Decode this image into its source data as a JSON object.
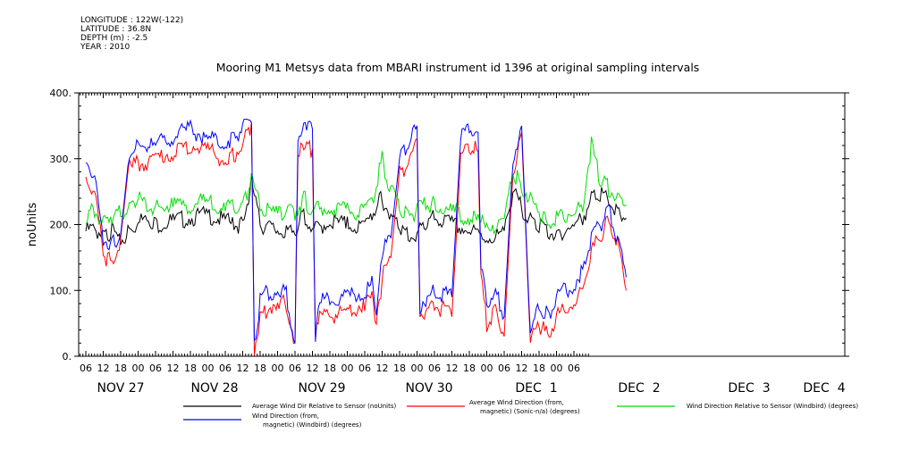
{
  "meta": {
    "longitude": "LONGITUDE : 122W(-122)",
    "latitude": "LATITUDE : 36.8N",
    "depth": "DEPTH (m) : -2.5",
    "year": "YEAR : 2010"
  },
  "chart_data": {
    "type": "line",
    "title": "Mooring M1 Metsys data from MBARI instrument id 1396 at original sampling intervals",
    "ylabel": "noUnits",
    "ylim": [
      0,
      400
    ],
    "yticks": [
      0,
      100,
      200,
      300,
      400
    ],
    "ytick_labels": [
      "0.",
      "100.",
      "200.",
      "300.",
      "400."
    ],
    "x_hour_ticks": [
      "06",
      "12",
      "18",
      "00",
      "06",
      "12",
      "18",
      "00",
      "06",
      "12",
      "18",
      "00",
      "06",
      "12",
      "18",
      "00",
      "06",
      "12",
      "18",
      "00",
      "06",
      "12",
      "18",
      "00",
      "06",
      "12",
      "18",
      "00",
      "06"
    ],
    "x_day_labels": [
      "NOV 27",
      "NOV 28",
      "NOV 29",
      "NOV 30",
      "DEC  1",
      "DEC  2",
      "DEC  3",
      "DEC  4"
    ],
    "x_range_hours": [
      0,
      171
    ],
    "series": [
      {
        "name": "Average Wind Dir Relative to Sensor (noUnits)",
        "color": "#000000",
        "points": [
          [
            0,
            190
          ],
          [
            3,
            195
          ],
          [
            6,
            180
          ],
          [
            9,
            190
          ],
          [
            12,
            175
          ],
          [
            15,
            190
          ],
          [
            18,
            200
          ],
          [
            21,
            215
          ],
          [
            24,
            200
          ],
          [
            30,
            205
          ],
          [
            36,
            210
          ],
          [
            42,
            215
          ],
          [
            48,
            205
          ],
          [
            51,
            200
          ],
          [
            54,
            200
          ],
          [
            57,
            265
          ],
          [
            60,
            200
          ],
          [
            66,
            190
          ],
          [
            69,
            185
          ],
          [
            72,
            190
          ],
          [
            75,
            215
          ],
          [
            78,
            190
          ],
          [
            84,
            205
          ],
          [
            90,
            200
          ],
          [
            96,
            195
          ],
          [
            99,
            220
          ],
          [
            102,
            240
          ],
          [
            105,
            210
          ],
          [
            108,
            200
          ],
          [
            111,
            180
          ],
          [
            114,
            185
          ],
          [
            117,
            200
          ],
          [
            120,
            210
          ],
          [
            126,
            200
          ],
          [
            132,
            190
          ],
          [
            138,
            180
          ],
          [
            144,
            185
          ],
          [
            147,
            250
          ],
          [
            150,
            225
          ],
          [
            153,
            210
          ],
          [
            156,
            200
          ],
          [
            159,
            190
          ],
          [
            162,
            185
          ],
          [
            168,
            200
          ],
          [
            171,
            210
          ],
          [
            174,
            240
          ],
          [
            177,
            245
          ],
          [
            180,
            235
          ],
          [
            183,
            215
          ],
          [
            186,
            210
          ]
        ]
      },
      {
        "name": "Average Wind Direction (from, magnetic) (Sonic-n/a) (degrees)",
        "color": "#ff0000",
        "points": [
          [
            0,
            270
          ],
          [
            3,
            250
          ],
          [
            6,
            155
          ],
          [
            9,
            140
          ],
          [
            12,
            180
          ],
          [
            15,
            300
          ],
          [
            18,
            290
          ],
          [
            24,
            300
          ],
          [
            30,
            310
          ],
          [
            36,
            320
          ],
          [
            42,
            315
          ],
          [
            48,
            295
          ],
          [
            51,
            305
          ],
          [
            54,
            320
          ],
          [
            57,
            355
          ],
          [
            58,
            10
          ],
          [
            60,
            60
          ],
          [
            66,
            85
          ],
          [
            69,
            80
          ],
          [
            72,
            20
          ],
          [
            73,
            310
          ],
          [
            78,
            315
          ],
          [
            79,
            20
          ],
          [
            80,
            60
          ],
          [
            84,
            60
          ],
          [
            90,
            70
          ],
          [
            96,
            80
          ],
          [
            99,
            90
          ],
          [
            100,
            40
          ],
          [
            102,
            120
          ],
          [
            105,
            150
          ],
          [
            108,
            280
          ],
          [
            111,
            290
          ],
          [
            114,
            330
          ],
          [
            115,
            50
          ],
          [
            117,
            60
          ],
          [
            120,
            80
          ],
          [
            126,
            60
          ],
          [
            129,
            300
          ],
          [
            132,
            320
          ],
          [
            135,
            310
          ],
          [
            136,
            120
          ],
          [
            138,
            50
          ],
          [
            141,
            70
          ],
          [
            144,
            30
          ],
          [
            147,
            280
          ],
          [
            150,
            340
          ],
          [
            153,
            20
          ],
          [
            156,
            50
          ],
          [
            159,
            30
          ],
          [
            162,
            60
          ],
          [
            168,
            80
          ],
          [
            171,
            100
          ],
          [
            174,
            160
          ],
          [
            177,
            180
          ],
          [
            180,
            210
          ],
          [
            183,
            170
          ],
          [
            186,
            100
          ]
        ]
      },
      {
        "name": "Wind Direction Relative to Sensor (Windbird) (degrees)",
        "color": "#00dd00",
        "points": [
          [
            0,
            215
          ],
          [
            3,
            220
          ],
          [
            6,
            205
          ],
          [
            9,
            215
          ],
          [
            12,
            220
          ],
          [
            15,
            225
          ],
          [
            18,
            240
          ],
          [
            21,
            225
          ],
          [
            24,
            225
          ],
          [
            30,
            230
          ],
          [
            36,
            230
          ],
          [
            42,
            235
          ],
          [
            48,
            225
          ],
          [
            51,
            230
          ],
          [
            54,
            230
          ],
          [
            57,
            270
          ],
          [
            60,
            225
          ],
          [
            66,
            215
          ],
          [
            69,
            215
          ],
          [
            72,
            220
          ],
          [
            75,
            240
          ],
          [
            78,
            220
          ],
          [
            84,
            225
          ],
          [
            90,
            220
          ],
          [
            96,
            220
          ],
          [
            99,
            240
          ],
          [
            102,
            300
          ],
          [
            105,
            250
          ],
          [
            108,
            225
          ],
          [
            111,
            215
          ],
          [
            114,
            220
          ],
          [
            117,
            230
          ],
          [
            120,
            230
          ],
          [
            126,
            220
          ],
          [
            132,
            210
          ],
          [
            138,
            200
          ],
          [
            144,
            200
          ],
          [
            147,
            280
          ],
          [
            150,
            260
          ],
          [
            153,
            240
          ],
          [
            156,
            220
          ],
          [
            159,
            200
          ],
          [
            162,
            210
          ],
          [
            168,
            220
          ],
          [
            171,
            230
          ],
          [
            174,
            320
          ],
          [
            177,
            270
          ],
          [
            180,
            255
          ],
          [
            183,
            240
          ],
          [
            186,
            230
          ]
        ]
      },
      {
        "name": "Wind Direction (from, magnetic) (Windbird) (degrees)",
        "color": "#0000ff",
        "points": [
          [
            0,
            290
          ],
          [
            3,
            270
          ],
          [
            6,
            180
          ],
          [
            9,
            170
          ],
          [
            12,
            185
          ],
          [
            15,
            310
          ],
          [
            18,
            320
          ],
          [
            24,
            320
          ],
          [
            30,
            335
          ],
          [
            36,
            345
          ],
          [
            42,
            330
          ],
          [
            48,
            325
          ],
          [
            51,
            335
          ],
          [
            54,
            345
          ],
          [
            57,
            355
          ],
          [
            58,
            10
          ],
          [
            60,
            90
          ],
          [
            66,
            100
          ],
          [
            69,
            95
          ],
          [
            72,
            20
          ],
          [
            73,
            340
          ],
          [
            78,
            345
          ],
          [
            79,
            20
          ],
          [
            80,
            80
          ],
          [
            84,
            90
          ],
          [
            90,
            90
          ],
          [
            96,
            100
          ],
          [
            99,
            110
          ],
          [
            100,
            60
          ],
          [
            102,
            160
          ],
          [
            105,
            180
          ],
          [
            108,
            300
          ],
          [
            111,
            320
          ],
          [
            114,
            350
          ],
          [
            115,
            60
          ],
          [
            117,
            80
          ],
          [
            120,
            100
          ],
          [
            126,
            90
          ],
          [
            129,
            330
          ],
          [
            132,
            350
          ],
          [
            135,
            340
          ],
          [
            136,
            140
          ],
          [
            138,
            80
          ],
          [
            141,
            100
          ],
          [
            144,
            60
          ],
          [
            147,
            300
          ],
          [
            150,
            350
          ],
          [
            153,
            30
          ],
          [
            156,
            80
          ],
          [
            159,
            60
          ],
          [
            162,
            90
          ],
          [
            168,
            110
          ],
          [
            171,
            130
          ],
          [
            174,
            180
          ],
          [
            177,
            200
          ],
          [
            180,
            220
          ],
          [
            183,
            180
          ],
          [
            186,
            120
          ]
        ]
      }
    ],
    "legend": [
      {
        "text": "Average Wind Dir Relative to Sensor (noUnits)",
        "color": "#000000"
      },
      {
        "text": "Average Wind Direction (from,\nmagnetic) (Sonic-n/a) (degrees)",
        "color": "#ff0000"
      },
      {
        "text": "Wind Direction Relative to Sensor (Windbird) (degrees)",
        "color": "#00dd00"
      },
      {
        "text": "Wind Direction (from,\nmagnetic) (Windbird) (degrees)",
        "color": "#0000ff"
      }
    ],
    "legend_position": "bottom"
  }
}
